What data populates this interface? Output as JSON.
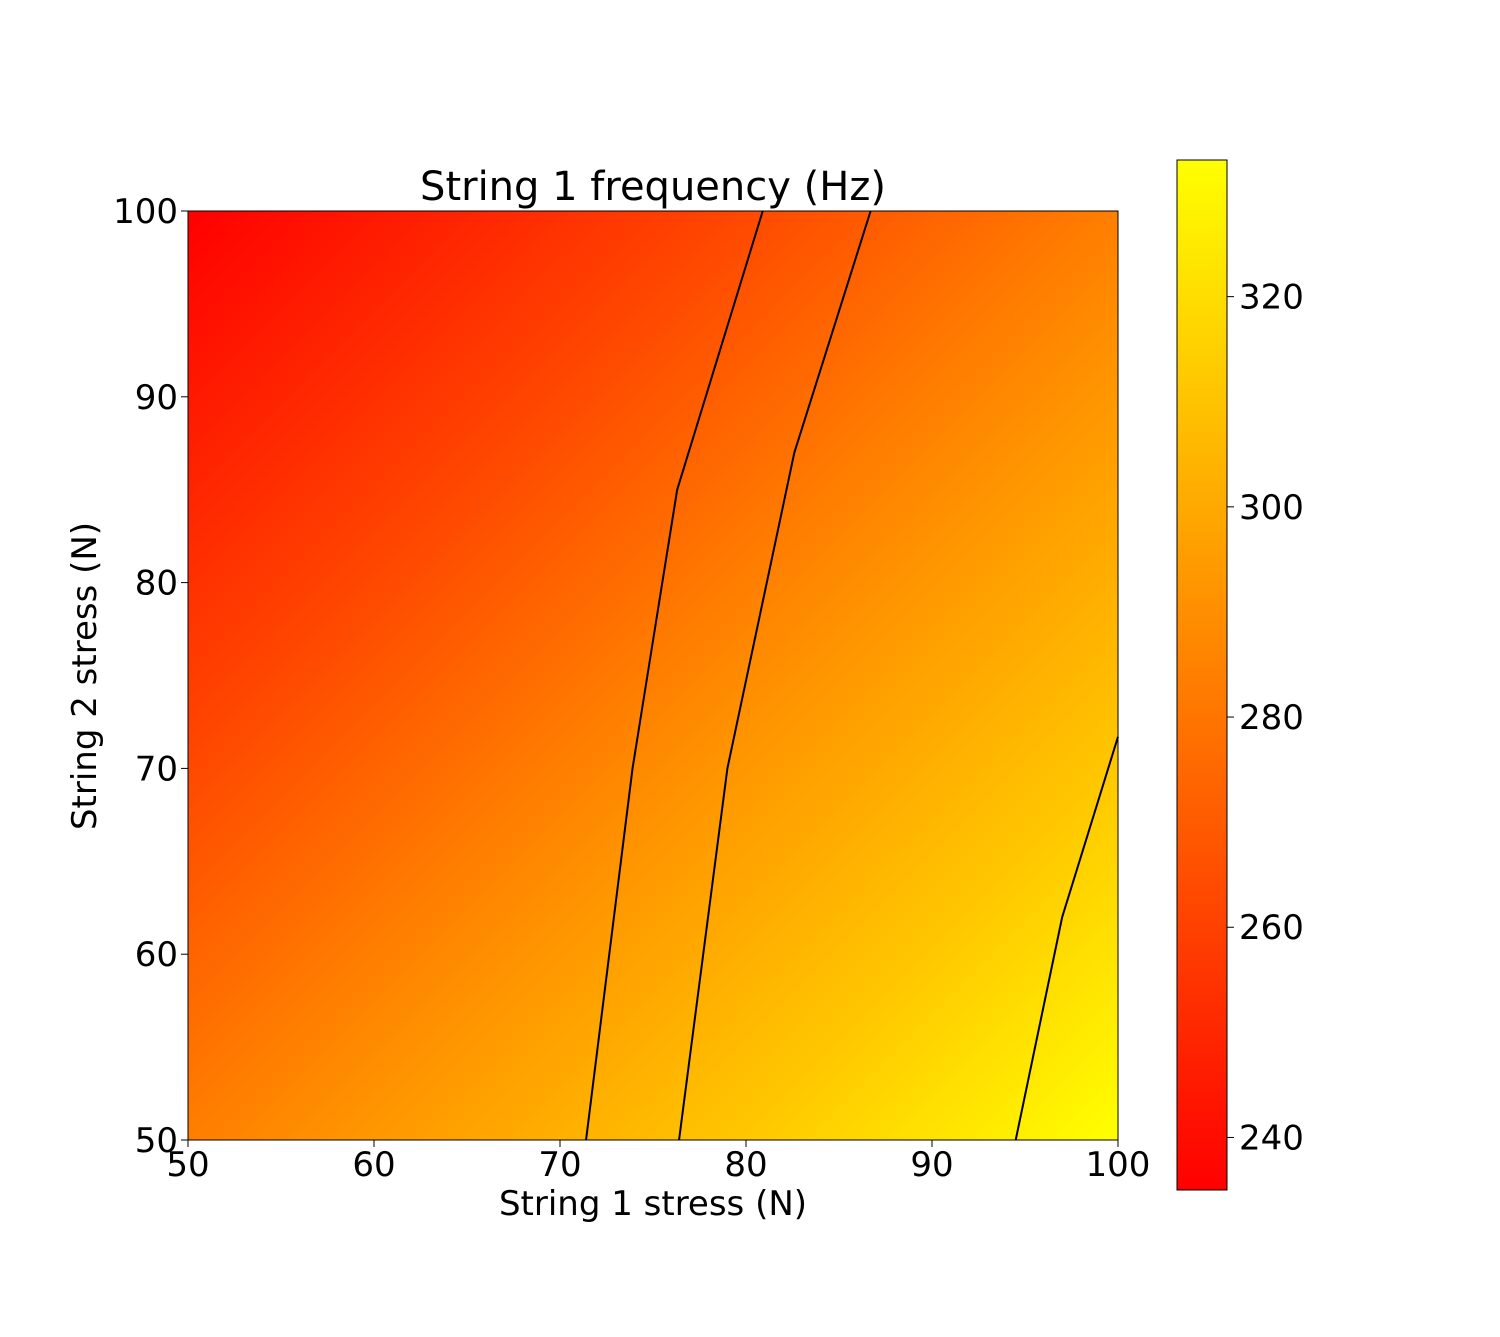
{
  "chart_data": {
    "type": "heatmap",
    "title": "String 1 frequency (Hz)",
    "xlabel": "String 1 stress (N)",
    "ylabel": "String 2 stress (N)",
    "xlim": [
      50,
      100
    ],
    "ylim": [
      50,
      100
    ],
    "xticks": [
      50,
      60,
      70,
      80,
      90,
      100
    ],
    "yticks": [
      50,
      60,
      70,
      80,
      90,
      100
    ],
    "colormap": "autumn",
    "colormap_colors": [
      "#ff0000",
      "#ffff00"
    ],
    "colorbar": {
      "range": [
        235,
        333
      ],
      "ticks": [
        240,
        260,
        280,
        300,
        320
      ]
    },
    "grid": false,
    "contour_color": "#000000",
    "contour_lines": [
      {
        "points": [
          [
            71.4,
            50
          ],
          [
            73.9,
            70
          ],
          [
            76.3,
            85
          ],
          [
            80.9,
            100
          ]
        ]
      },
      {
        "points": [
          [
            76.4,
            50
          ],
          [
            79.0,
            70
          ],
          [
            82.6,
            87
          ],
          [
            86.7,
            100
          ]
        ]
      },
      {
        "points": [
          [
            94.5,
            50
          ],
          [
            97.0,
            62
          ],
          [
            100,
            71.7
          ]
        ]
      }
    ]
  }
}
